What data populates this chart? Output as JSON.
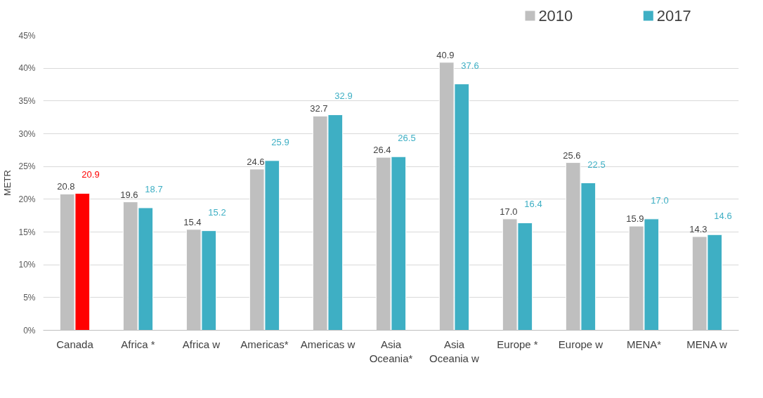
{
  "chart_data": {
    "type": "bar",
    "ylabel": "METR",
    "categories": [
      "Canada",
      "Africa *",
      "Africa w",
      "Americas*",
      "Americas w",
      "Asia Oceania*",
      "Asia Oceania w",
      "Europe *",
      "Europe w",
      "MENA*",
      "MENA w"
    ],
    "series": [
      {
        "name": "2010",
        "color": "#bfbfbf",
        "values": [
          20.8,
          19.6,
          15.4,
          24.6,
          32.7,
          26.4,
          40.9,
          17.0,
          25.6,
          15.9,
          14.3
        ],
        "value_labels": [
          "20.8",
          "19.6",
          "15.4",
          "24.6",
          "32.7",
          "26.4",
          "40.9",
          "17.0",
          "25.6",
          "15.9",
          "14.3"
        ]
      },
      {
        "name": "2017",
        "color": "#3eafc4",
        "colors": [
          "#ff0000",
          "#3eafc4",
          "#3eafc4",
          "#3eafc4",
          "#3eafc4",
          "#3eafc4",
          "#3eafc4",
          "#3eafc4",
          "#3eafc4",
          "#3eafc4",
          "#3eafc4"
        ],
        "values": [
          20.9,
          18.7,
          15.2,
          25.9,
          32.9,
          26.5,
          37.6,
          16.4,
          22.5,
          17.0,
          14.6
        ],
        "value_labels": [
          "20.9",
          "18.7",
          "15.2",
          "25.9",
          "32.9",
          "26.5",
          "37.6",
          "16.4",
          "22.5",
          "17.0",
          "14.6"
        ]
      }
    ],
    "ylim": [
      0,
      45
    ],
    "yticks": [
      {
        "value": 0,
        "label": "0%"
      },
      {
        "value": 5,
        "label": "5%"
      },
      {
        "value": 10,
        "label": "10%"
      },
      {
        "value": 15,
        "label": "15%"
      },
      {
        "value": 20,
        "label": "20%"
      },
      {
        "value": 25,
        "label": "25%"
      },
      {
        "value": 30,
        "label": "30%"
      },
      {
        "value": 35,
        "label": "35%"
      },
      {
        "value": 40,
        "label": "40%"
      },
      {
        "value": 45,
        "label": "45%"
      }
    ],
    "grid": "y",
    "legend": "top right"
  }
}
